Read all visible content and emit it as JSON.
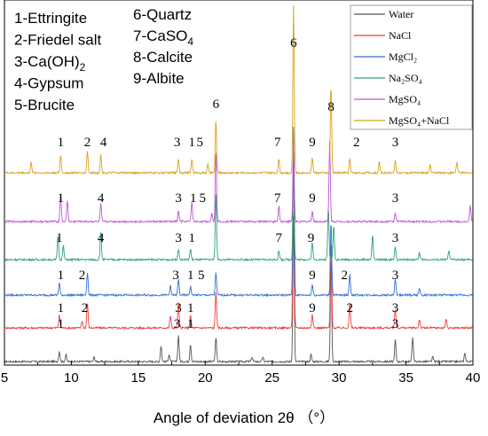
{
  "chart_data": {
    "type": "line",
    "xlabel": "Angle of deviation 2θ （°）",
    "xlim": [
      5,
      40
    ],
    "xticks": [
      "5",
      "10",
      "15",
      "20",
      "25",
      "30",
      "35",
      "40"
    ],
    "phase_key": [
      {
        "label": "1-Ettringite"
      },
      {
        "label": "2-Friedel salt"
      },
      {
        "label": "3-Ca(OH)",
        "sub": "2"
      },
      {
        "label": "4-Gypsum"
      },
      {
        "label": "5-Brucite"
      },
      {
        "label": "6-Quartz"
      },
      {
        "label": "7-CaSO",
        "sub": "4"
      },
      {
        "label": "8-Calcite"
      },
      {
        "label": "9-Albite"
      }
    ],
    "series": [
      {
        "name": "Water",
        "color": "#555555",
        "peaks": [
          [
            9.1,
            12
          ],
          [
            9.6,
            8
          ],
          [
            11.7,
            5
          ],
          [
            16.7,
            18
          ],
          [
            17.3,
            8
          ],
          [
            18.0,
            30
          ],
          [
            18.9,
            20
          ],
          [
            20.8,
            28
          ],
          [
            23.5,
            5
          ],
          [
            24.3,
            5
          ],
          [
            26.6,
            165
          ],
          [
            27.9,
            8
          ],
          [
            29.4,
            120
          ],
          [
            34.2,
            25
          ],
          [
            35.5,
            28
          ],
          [
            37.0,
            5
          ],
          [
            39.4,
            10
          ]
        ],
        "labels": [
          {
            "text": "1",
            "x": 9.2
          },
          {
            "text": "3",
            "x": 17.9
          },
          {
            "text": "1",
            "x": 18.9
          },
          {
            "text": "3",
            "x": 34.2
          }
        ]
      },
      {
        "name": "NaCl",
        "color": "#ef3b3b",
        "peaks": [
          [
            9.1,
            14
          ],
          [
            10.8,
            8
          ],
          [
            11.2,
            28
          ],
          [
            17.4,
            14
          ],
          [
            18.0,
            28
          ],
          [
            18.9,
            14
          ],
          [
            20.8,
            42
          ],
          [
            26.6,
            200
          ],
          [
            28.0,
            16
          ],
          [
            29.4,
            100
          ],
          [
            30.8,
            28
          ],
          [
            34.2,
            22
          ],
          [
            36.0,
            10
          ],
          [
            38.0,
            10
          ]
        ],
        "labels": [
          {
            "text": "1",
            "x": 9.2
          },
          {
            "text": "2",
            "x": 11.0
          },
          {
            "text": "3",
            "x": 18.0
          },
          {
            "text": "1",
            "x": 18.9
          },
          {
            "text": "9",
            "x": 28.0
          },
          {
            "text": "2",
            "x": 30.8
          },
          {
            "text": "3",
            "x": 34.2
          }
        ]
      },
      {
        "name": "MgCl₂",
        "color": "#2f6fd6",
        "peaks": [
          [
            9.1,
            14
          ],
          [
            11.2,
            26
          ],
          [
            17.4,
            10
          ],
          [
            18.0,
            18
          ],
          [
            18.9,
            10
          ],
          [
            20.8,
            26
          ],
          [
            26.6,
            190
          ],
          [
            28.0,
            12
          ],
          [
            29.4,
            85
          ],
          [
            30.8,
            24
          ],
          [
            34.2,
            18
          ],
          [
            36.0,
            8
          ]
        ],
        "labels": [
          {
            "text": "1",
            "x": 9.2
          },
          {
            "text": "2",
            "x": 10.8
          },
          {
            "text": "3",
            "x": 17.8
          },
          {
            "text": "1",
            "x": 18.9
          },
          {
            "text": "5",
            "x": 19.7
          },
          {
            "text": "9",
            "x": 28.0
          },
          {
            "text": "2",
            "x": 30.4
          },
          {
            "text": "3",
            "x": 34.2
          }
        ]
      },
      {
        "name": "Na₂SO₄",
        "color": "#2aa570",
        "peaks": [
          [
            9.0,
            28
          ],
          [
            9.4,
            16
          ],
          [
            12.2,
            30
          ],
          [
            18.0,
            12
          ],
          [
            18.9,
            12
          ],
          [
            20.8,
            75
          ],
          [
            25.5,
            10
          ],
          [
            26.6,
            95
          ],
          [
            28.0,
            20
          ],
          [
            29.2,
            60
          ],
          [
            29.6,
            40
          ],
          [
            32.5,
            28
          ],
          [
            34.2,
            14
          ],
          [
            36.0,
            8
          ],
          [
            38.2,
            10
          ]
        ],
        "labels": [
          {
            "text": "1",
            "x": 9.1
          },
          {
            "text": "4",
            "x": 12.2
          },
          {
            "text": "3",
            "x": 18.0
          },
          {
            "text": "1",
            "x": 19.0
          },
          {
            "text": "7",
            "x": 25.5
          },
          {
            "text": "9",
            "x": 27.9
          },
          {
            "text": "3",
            "x": 34.2
          }
        ]
      },
      {
        "name": "MgSO₄",
        "color": "#bb55d6",
        "peaks": [
          [
            9.2,
            32
          ],
          [
            9.7,
            24
          ],
          [
            12.2,
            20
          ],
          [
            18.0,
            12
          ],
          [
            19.0,
            22
          ],
          [
            20.5,
            10
          ],
          [
            20.8,
            80
          ],
          [
            25.5,
            18
          ],
          [
            26.6,
            88
          ],
          [
            28.0,
            12
          ],
          [
            29.3,
            90
          ],
          [
            34.2,
            10
          ],
          [
            39.8,
            18
          ]
        ],
        "labels": [
          {
            "text": "1",
            "x": 9.2
          },
          {
            "text": "4",
            "x": 12.2
          },
          {
            "text": "3",
            "x": 18.0
          },
          {
            "text": "1",
            "x": 19.1
          },
          {
            "text": "5",
            "x": 19.8
          },
          {
            "text": "7",
            "x": 25.4
          },
          {
            "text": "9",
            "x": 28.0
          },
          {
            "text": "3",
            "x": 34.2
          }
        ]
      },
      {
        "name": "MgSO₄+NaCl",
        "color": "#d9a21b",
        "peaks": [
          [
            7.0,
            12
          ],
          [
            9.2,
            20
          ],
          [
            11.2,
            25
          ],
          [
            12.2,
            20
          ],
          [
            18.0,
            16
          ],
          [
            19.0,
            16
          ],
          [
            20.2,
            10
          ],
          [
            20.8,
            60
          ],
          [
            25.5,
            16
          ],
          [
            26.6,
            190
          ],
          [
            28.0,
            18
          ],
          [
            29.4,
            100
          ],
          [
            30.8,
            16
          ],
          [
            33.0,
            12
          ],
          [
            34.2,
            14
          ],
          [
            36.8,
            10
          ],
          [
            38.8,
            12
          ]
        ],
        "labels": [
          {
            "text": "1",
            "x": 9.2
          },
          {
            "text": "2",
            "x": 11.2
          },
          {
            "text": "4",
            "x": 12.4
          },
          {
            "text": "3",
            "x": 17.9
          },
          {
            "text": "1",
            "x": 19.0
          },
          {
            "text": "5",
            "x": 19.6
          },
          {
            "text": "7",
            "x": 25.4
          },
          {
            "text": "9",
            "x": 28.0
          },
          {
            "text": "2",
            "x": 31.3
          },
          {
            "text": "3",
            "x": 34.2
          }
        ]
      }
    ],
    "top_labels": [
      {
        "text": "6",
        "x": 20.8
      },
      {
        "text": "6",
        "x": 26.6
      },
      {
        "text": "8",
        "x": 29.4
      }
    ]
  }
}
